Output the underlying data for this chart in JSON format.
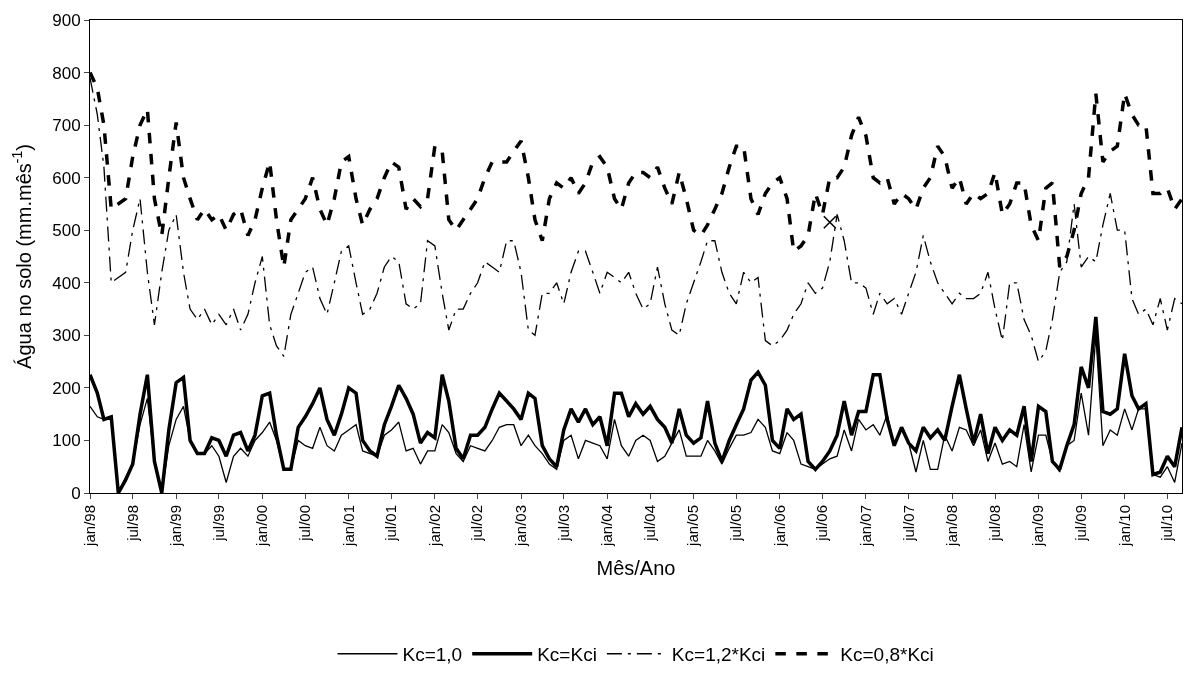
{
  "chart_data": {
    "type": "line",
    "xlabel": "Mês/Ano",
    "ylabel": "Água no solo (mm.mês$^{-1}$)",
    "ylim": [
      0,
      900
    ],
    "yticks": [
      0,
      100,
      200,
      300,
      400,
      500,
      600,
      700,
      800,
      900
    ],
    "xlim": [
      "1998-01",
      "2010-09"
    ],
    "x": [
      "1998-01",
      "1998-02",
      "1998-03",
      "1998-04",
      "1998-05",
      "1998-06",
      "1998-07",
      "1998-08",
      "1998-09",
      "1998-10",
      "1998-11",
      "1998-12",
      "1999-01",
      "1999-02",
      "1999-03",
      "1999-04",
      "1999-05",
      "1999-06",
      "1999-07",
      "1999-08",
      "1999-09",
      "1999-10",
      "1999-11",
      "1999-12",
      "2000-01",
      "2000-02",
      "2000-03",
      "2000-04",
      "2000-05",
      "2000-06",
      "2000-07",
      "2000-08",
      "2000-09",
      "2000-10",
      "2000-11",
      "2000-12",
      "2001-01",
      "2001-02",
      "2001-03",
      "2001-04",
      "2001-05",
      "2001-06",
      "2001-07",
      "2001-08",
      "2001-09",
      "2001-10",
      "2001-11",
      "2001-12",
      "2002-01",
      "2002-02",
      "2002-03",
      "2002-04",
      "2002-05",
      "2002-06",
      "2002-07",
      "2002-08",
      "2002-09",
      "2002-10",
      "2002-11",
      "2002-12",
      "2003-01",
      "2003-02",
      "2003-03",
      "2003-04",
      "2003-05",
      "2003-06",
      "2003-07",
      "2003-08",
      "2003-09",
      "2003-10",
      "2003-11",
      "2003-12",
      "2004-01",
      "2004-02",
      "2004-03",
      "2004-04",
      "2004-05",
      "2004-06",
      "2004-07",
      "2004-08",
      "2004-09",
      "2004-10",
      "2004-11",
      "2004-12",
      "2005-01",
      "2005-02",
      "2005-03",
      "2005-04",
      "2005-05",
      "2005-06",
      "2005-07",
      "2005-08",
      "2005-09",
      "2005-10",
      "2005-11",
      "2005-12",
      "2006-01",
      "2006-02",
      "2006-03",
      "2006-04",
      "2006-05",
      "2006-06",
      "2006-07",
      "2006-08",
      "2006-09",
      "2006-10",
      "2006-11",
      "2006-12",
      "2007-01",
      "2007-02",
      "2007-03",
      "2007-04",
      "2007-05",
      "2007-06",
      "2007-07",
      "2007-08",
      "2007-09",
      "2007-10",
      "2007-11",
      "2007-12",
      "2008-01",
      "2008-02",
      "2008-03",
      "2008-04",
      "2008-05",
      "2008-06",
      "2008-07",
      "2008-08",
      "2008-09",
      "2008-10",
      "2008-11",
      "2008-12",
      "2009-01",
      "2009-02",
      "2009-03",
      "2009-04",
      "2009-05",
      "2009-06",
      "2009-07",
      "2009-08",
      "2009-09",
      "2009-10",
      "2009-11",
      "2009-12",
      "2010-01",
      "2010-02",
      "2010-03",
      "2010-04",
      "2010-05",
      "2010-06",
      "2010-07",
      "2010-08",
      "2010-09"
    ],
    "xticks": [
      {
        "value": "1998-01",
        "label": "jan/98"
      },
      {
        "value": "1998-07",
        "label": "jul/98"
      },
      {
        "value": "1999-01",
        "label": "jan/99"
      },
      {
        "value": "1999-07",
        "label": "jul/99"
      },
      {
        "value": "2000-01",
        "label": "jan/00"
      },
      {
        "value": "2000-07",
        "label": "jul/00"
      },
      {
        "value": "2001-01",
        "label": "jan/01"
      },
      {
        "value": "2001-07",
        "label": "jul/01"
      },
      {
        "value": "2002-01",
        "label": "jan/02"
      },
      {
        "value": "2002-07",
        "label": "jul/02"
      },
      {
        "value": "2003-01",
        "label": "jan/03"
      },
      {
        "value": "2003-07",
        "label": "jul/03"
      },
      {
        "value": "2004-01",
        "label": "jan/04"
      },
      {
        "value": "2004-07",
        "label": "jul/04"
      },
      {
        "value": "2005-01",
        "label": "jan/05"
      },
      {
        "value": "2005-07",
        "label": "jul/05"
      },
      {
        "value": "2006-01",
        "label": "jan/06"
      },
      {
        "value": "2006-07",
        "label": "jul/06"
      },
      {
        "value": "2007-01",
        "label": "jan/07"
      },
      {
        "value": "2007-07",
        "label": "jul/07"
      },
      {
        "value": "2008-01",
        "label": "jan/08"
      },
      {
        "value": "2008-07",
        "label": "jul/08"
      },
      {
        "value": "2009-01",
        "label": "jan/09"
      },
      {
        "value": "2009-07",
        "label": "jul/09"
      },
      {
        "value": "2010-01",
        "label": "jan/10"
      },
      {
        "value": "2010-07",
        "label": "jul/10"
      }
    ],
    "grid": false,
    "legend": "bottom",
    "marker": "none",
    "series": [
      {
        "name": "Kc=1,0",
        "color": "#000000",
        "line_style": "solid",
        "values": [
          165,
          145,
          140,
          140,
          0,
          30,
          55,
          130,
          180,
          60,
          0,
          90,
          140,
          165,
          100,
          75,
          75,
          90,
          70,
          20,
          70,
          85,
          70,
          100,
          115,
          135,
          100,
          45,
          45,
          100,
          90,
          85,
          125,
          90,
          80,
          110,
          120,
          130,
          80,
          75,
          70,
          110,
          120,
          135,
          80,
          85,
          55,
          80,
          80,
          130,
          115,
          75,
          60,
          90,
          85,
          80,
          100,
          125,
          130,
          130,
          90,
          110,
          90,
          75,
          55,
          45,
          100,
          110,
          65,
          100,
          95,
          90,
          65,
          140,
          90,
          70,
          100,
          110,
          100,
          60,
          70,
          95,
          120,
          70,
          70,
          70,
          100,
          80,
          55,
          85,
          110,
          110,
          115,
          140,
          125,
          80,
          75,
          115,
          100,
          55,
          50,
          45,
          55,
          65,
          70,
          120,
          80,
          140,
          120,
          130,
          110,
          150,
          90,
          120,
          95,
          40,
          100,
          45,
          45,
          110,
          80,
          125,
          120,
          90,
          120,
          60,
          95,
          55,
          60,
          50,
          130,
          40,
          110,
          110,
          60,
          40,
          90,
          100,
          190,
          110,
          300,
          90,
          120,
          110,
          160,
          120,
          160,
          160,
          35,
          30,
          50,
          20,
          95
        ]
      },
      {
        "name": "Kc=Kci",
        "color": "#000000",
        "line_style": "solid",
        "values": [
          225,
          190,
          140,
          145,
          0,
          25,
          55,
          150,
          225,
          60,
          0,
          120,
          210,
          220,
          100,
          75,
          75,
          105,
          100,
          70,
          110,
          115,
          80,
          110,
          185,
          190,
          110,
          45,
          45,
          125,
          145,
          170,
          200,
          140,
          110,
          150,
          200,
          190,
          100,
          80,
          70,
          130,
          165,
          205,
          180,
          150,
          95,
          115,
          105,
          225,
          175,
          85,
          65,
          110,
          110,
          125,
          160,
          190,
          175,
          160,
          140,
          190,
          180,
          90,
          65,
          50,
          120,
          160,
          135,
          160,
          130,
          145,
          90,
          190,
          190,
          145,
          170,
          150,
          165,
          140,
          125,
          95,
          160,
          110,
          95,
          105,
          175,
          95,
          60,
          100,
          130,
          160,
          215,
          230,
          205,
          100,
          85,
          160,
          140,
          150,
          60,
          45,
          60,
          80,
          110,
          175,
          110,
          155,
          155,
          225,
          225,
          140,
          90,
          125,
          95,
          80,
          125,
          105,
          120,
          100,
          165,
          225,
          160,
          95,
          150,
          75,
          125,
          100,
          120,
          110,
          165,
          60,
          165,
          155,
          60,
          45,
          90,
          130,
          240,
          200,
          335,
          155,
          150,
          160,
          265,
          185,
          160,
          170,
          35,
          40,
          70,
          50,
          125
        ]
      },
      {
        "name": "Kc=1,2*Kci",
        "color": "#000000",
        "line_style": "dashdot",
        "values": [
          790,
          720,
          620,
          400,
          410,
          420,
          500,
          560,
          420,
          320,
          420,
          500,
          530,
          420,
          350,
          330,
          350,
          320,
          340,
          320,
          350,
          310,
          340,
          400,
          450,
          320,
          280,
          260,
          340,
          380,
          420,
          430,
          370,
          340,
          400,
          460,
          470,
          400,
          340,
          350,
          380,
          430,
          450,
          440,
          360,
          350,
          360,
          480,
          470,
          380,
          310,
          350,
          350,
          380,
          400,
          440,
          430,
          420,
          480,
          480,
          420,
          310,
          300,
          380,
          380,
          400,
          360,
          420,
          460,
          460,
          420,
          380,
          420,
          410,
          400,
          420,
          380,
          350,
          360,
          430,
          360,
          310,
          300,
          360,
          400,
          440,
          480,
          480,
          420,
          380,
          360,
          420,
          400,
          410,
          290,
          280,
          290,
          310,
          340,
          360,
          400,
          380,
          390,
          440,
          530,
          480,
          400,
          400,
          390,
          340,
          380,
          360,
          370,
          340,
          380,
          420,
          490,
          440,
          400,
          380,
          360,
          380,
          370,
          370,
          380,
          420,
          350,
          290,
          400,
          400,
          330,
          300,
          250,
          270,
          330,
          420,
          440,
          550,
          430,
          450,
          440,
          510,
          570,
          500,
          500,
          370,
          340,
          350,
          320,
          370,
          310,
          370,
          360
        ]
      },
      {
        "name": "Kc=0,8*Kci",
        "color": "#000000",
        "line_style": "dashed",
        "values": [
          800,
          770,
          700,
          540,
          550,
          560,
          640,
          700,
          730,
          560,
          490,
          600,
          705,
          600,
          560,
          520,
          540,
          520,
          530,
          500,
          530,
          540,
          490,
          520,
          580,
          630,
          520,
          430,
          520,
          540,
          560,
          600,
          540,
          510,
          560,
          630,
          640,
          560,
          510,
          540,
          560,
          600,
          630,
          620,
          540,
          560,
          545,
          560,
          660,
          650,
          520,
          500,
          520,
          540,
          560,
          600,
          630,
          630,
          630,
          650,
          670,
          600,
          520,
          480,
          560,
          590,
          580,
          600,
          570,
          590,
          630,
          640,
          620,
          560,
          540,
          590,
          610,
          610,
          600,
          620,
          580,
          550,
          610,
          560,
          500,
          490,
          510,
          540,
          570,
          620,
          660,
          660,
          560,
          530,
          570,
          590,
          600,
          560,
          460,
          470,
          490,
          570,
          530,
          600,
          600,
          620,
          680,
          715,
          680,
          600,
          590,
          600,
          550,
          570,
          560,
          540,
          580,
          600,
          660,
          640,
          580,
          600,
          550,
          570,
          560,
          570,
          610,
          530,
          550,
          590,
          590,
          510,
          480,
          580,
          590,
          430,
          450,
          500,
          570,
          600,
          760,
          630,
          650,
          660,
          760,
          720,
          700,
          700,
          570,
          570,
          580,
          540,
          560
        ]
      },
      {
        "type": "scatter",
        "color": "#000000",
        "marker": "cross",
        "x": [
          "2006-08"
        ],
        "values": [
          515
        ]
      }
    ]
  }
}
